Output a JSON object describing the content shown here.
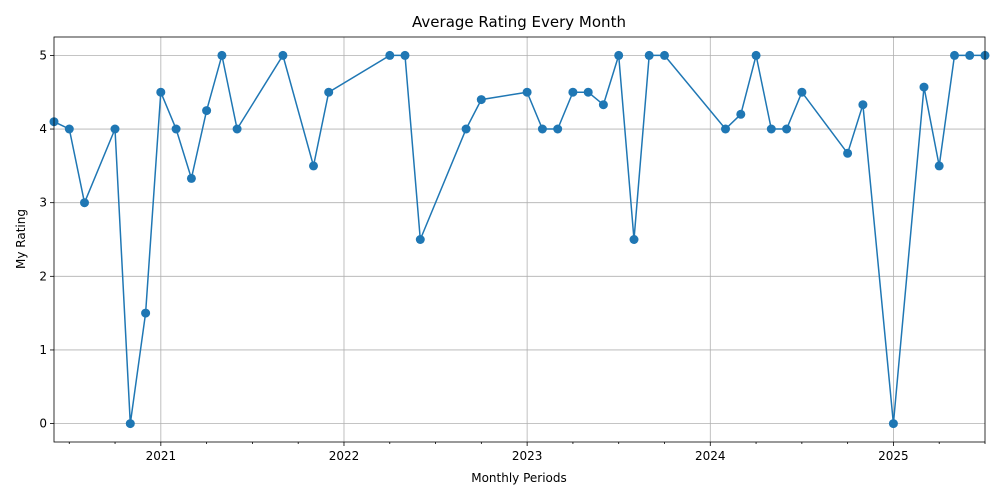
{
  "chart_data": {
    "type": "line",
    "title": "Average Rating Every Month",
    "xlabel": "Monthly Periods",
    "ylabel": "My Rating",
    "xlim": [
      "2020-06",
      "2025-07"
    ],
    "ylim": [
      -0.25,
      5.25
    ],
    "grid": true,
    "color": "#1f77b4",
    "marker": "circle",
    "x_tick_labels": [
      "2021",
      "2022",
      "2023",
      "2024",
      "2025"
    ],
    "y_tick_labels": [
      "0",
      "1",
      "2",
      "3",
      "4",
      "5"
    ],
    "series": [
      {
        "x": [
          "2020-06",
          "2020-07",
          "2020-08",
          "2020-10",
          "2020-11",
          "2020-12",
          "2021-01",
          "2021-02",
          "2021-03",
          "2021-04",
          "2021-05",
          "2021-06",
          "2021-09",
          "2021-11",
          "2021-12",
          "2022-04",
          "2022-05",
          "2022-06",
          "2022-09",
          "2022-10",
          "2023-01",
          "2023-02",
          "2023-03",
          "2023-04",
          "2023-05",
          "2023-06",
          "2023-07",
          "2023-08",
          "2023-09",
          "2023-10",
          "2024-02",
          "2024-03",
          "2024-04",
          "2024-05",
          "2024-06",
          "2024-07",
          "2024-10",
          "2024-11",
          "2025-01",
          "2025-03",
          "2025-04",
          "2025-05",
          "2025-06",
          "2025-07"
        ],
        "values": [
          4.1,
          4.0,
          3.0,
          4.0,
          0.0,
          1.5,
          4.5,
          4.0,
          3.33,
          4.25,
          5.0,
          4.0,
          5.0,
          3.5,
          4.5,
          5.0,
          5.0,
          2.5,
          4.0,
          4.4,
          4.5,
          4.0,
          4.0,
          4.5,
          4.5,
          4.33,
          5.0,
          2.5,
          5.0,
          5.0,
          4.0,
          4.2,
          5.0,
          4.0,
          4.0,
          4.5,
          3.67,
          4.33,
          0.0,
          4.57,
          3.5,
          5.0,
          5.0,
          5.0
        ]
      }
    ]
  }
}
